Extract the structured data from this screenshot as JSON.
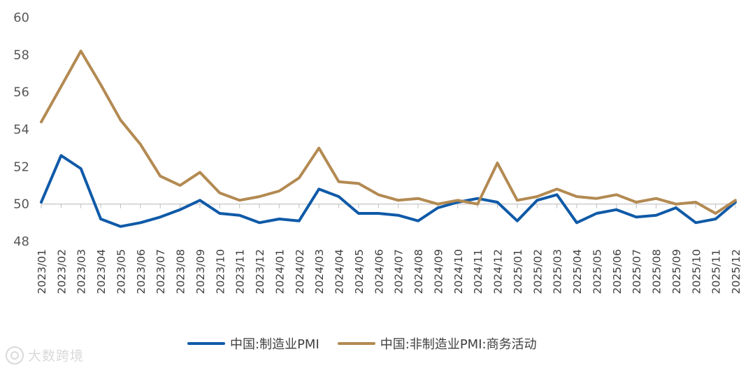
{
  "chart_data": {
    "type": "line",
    "title": "",
    "xlabel": "",
    "ylabel": "",
    "ylim": [
      48,
      60
    ],
    "yticks": [
      48,
      50,
      52,
      54,
      56,
      58,
      60
    ],
    "reference_line": 50,
    "grid": false,
    "legend_position": "bottom",
    "categories": [
      "2023/01",
      "2023/02",
      "2023/03",
      "2023/04",
      "2023/05",
      "2023/06",
      "2023/07",
      "2023/08",
      "2023/09",
      "2023/10",
      "2023/11",
      "2023/12",
      "2024/01",
      "2024/02",
      "2024/03",
      "2024/04",
      "2024/05",
      "2024/06",
      "2024/07",
      "2024/08",
      "2024/09",
      "2024/10",
      "2024/11",
      "2024/12",
      "2025/01",
      "2025/02",
      "2025/03",
      "2025/04",
      "2025/05",
      "2025/06",
      "2025/07",
      "2025/08",
      "2025/09",
      "2025/10",
      "2025/11",
      "2025/12"
    ],
    "series": [
      {
        "name": "中国:制造业PMI",
        "color": "#0f5aa8",
        "values": [
          50.1,
          52.6,
          51.9,
          49.2,
          48.8,
          49.0,
          49.3,
          49.7,
          50.2,
          49.5,
          49.4,
          49.0,
          49.2,
          49.1,
          50.8,
          50.4,
          49.5,
          49.5,
          49.4,
          49.1,
          49.8,
          50.1,
          50.3,
          50.1,
          49.1,
          50.2,
          50.5,
          49.0,
          49.5,
          49.7,
          49.3,
          49.4,
          49.8,
          49.0,
          49.2,
          50.1
        ]
      },
      {
        "name": "中国:非制造业PMI:商务活动",
        "color": "#b38a52",
        "values": [
          54.4,
          56.3,
          58.2,
          56.4,
          54.5,
          53.2,
          51.5,
          51.0,
          51.7,
          50.6,
          50.2,
          50.4,
          50.7,
          51.4,
          53.0,
          51.2,
          51.1,
          50.5,
          50.2,
          50.3,
          50.0,
          50.2,
          50.0,
          52.2,
          50.2,
          50.4,
          50.8,
          50.4,
          50.3,
          50.5,
          50.1,
          50.3,
          50.0,
          50.1,
          49.5,
          50.2
        ]
      }
    ]
  },
  "watermark": {
    "text": "大数跨境",
    "icon": "logo-icon"
  }
}
